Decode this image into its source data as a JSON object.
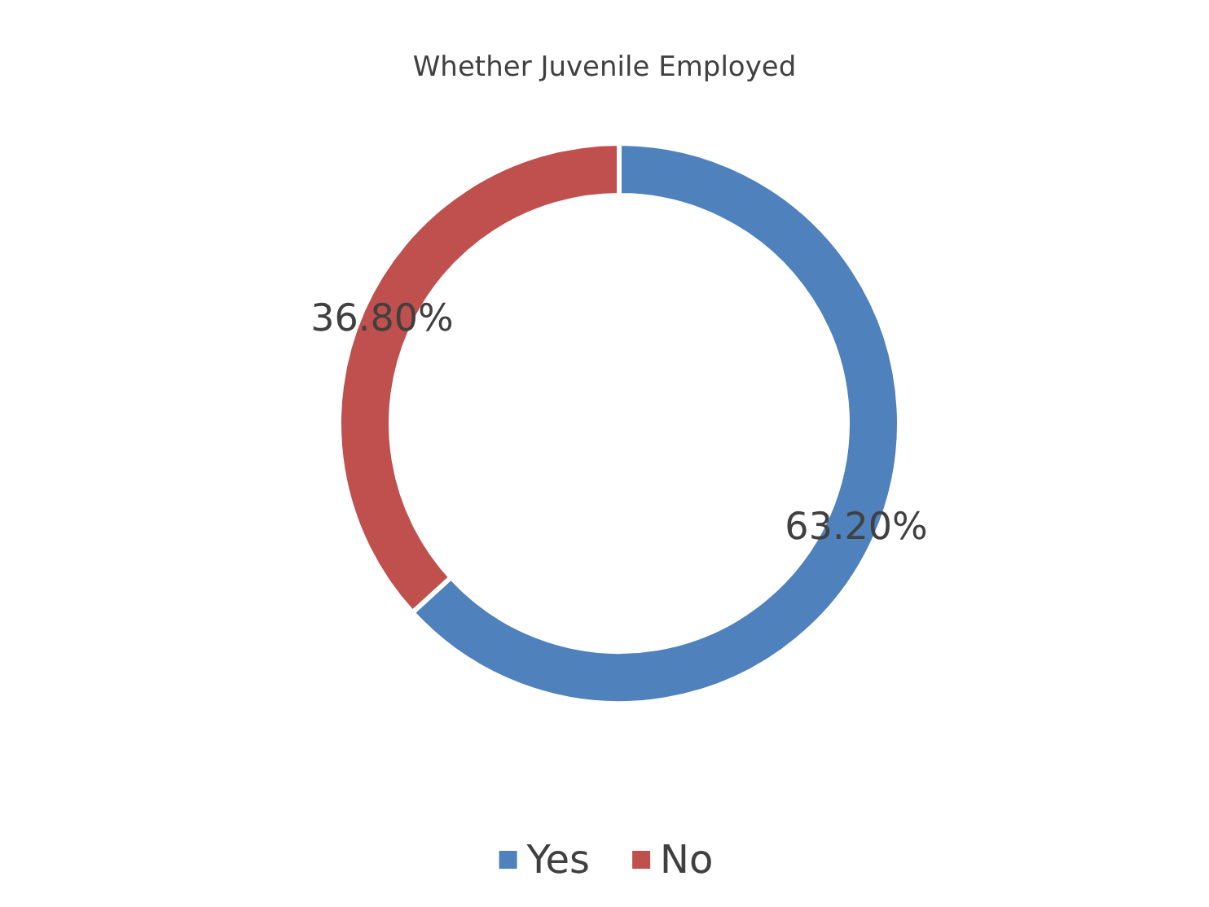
{
  "chart_data": {
    "type": "donut",
    "title": "Whether Juvenile Employed",
    "categories": [
      "Yes",
      "No"
    ],
    "values": [
      63.2,
      36.8
    ],
    "value_labels": [
      "63.20%",
      "36.80%"
    ],
    "colors": [
      "#4f81bd",
      "#c0504d"
    ],
    "legend": "bottom"
  }
}
